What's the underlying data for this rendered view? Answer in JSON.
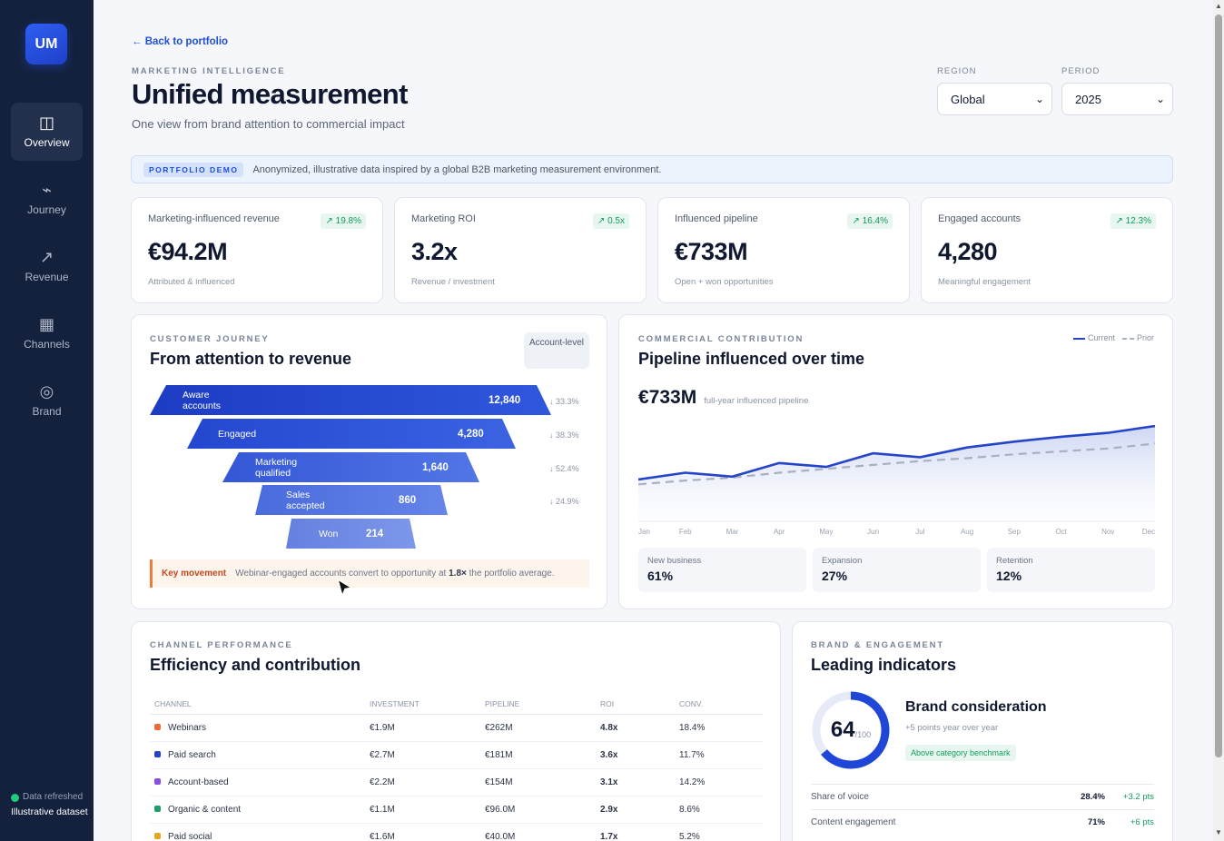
{
  "sidebar": {
    "logo": "UM",
    "items": [
      {
        "label": "Overview",
        "icon": "◫",
        "icon_name": "layout-icon"
      },
      {
        "label": "Journey",
        "icon": "⌁",
        "icon_name": "journey-icon"
      },
      {
        "label": "Revenue",
        "icon": "↗",
        "icon_name": "trend-icon"
      },
      {
        "label": "Channels",
        "icon": "▦",
        "icon_name": "grid-icon"
      },
      {
        "label": "Brand",
        "icon": "◎",
        "icon_name": "target-icon"
      }
    ],
    "status": "Data refreshed",
    "dataset": "Illustrative dataset"
  },
  "header": {
    "back": "← Back to portfolio",
    "eyebrow": "MARKETING INTELLIGENCE",
    "title": "Unified measurement",
    "subtitle": "One view from brand attention to commercial impact"
  },
  "filters": {
    "region_label": "REGION",
    "region_value": "Global",
    "period_label": "PERIOD",
    "period_value": "2025"
  },
  "notice": {
    "tag": "PORTFOLIO DEMO",
    "text": "Anonymized, illustrative data inspired by a global B2B marketing measurement environment."
  },
  "kpis": [
    {
      "label": "Marketing-influenced revenue",
      "delta": "↗ 19.8%",
      "value": "€94.2M",
      "foot": "Attributed & influenced"
    },
    {
      "label": "Marketing ROI",
      "delta": "↗ 0.5x",
      "value": "3.2x",
      "foot": "Revenue / investment"
    },
    {
      "label": "Influenced pipeline",
      "delta": "↗ 16.4%",
      "value": "€733M",
      "foot": "Open + won opportunities"
    },
    {
      "label": "Engaged accounts",
      "delta": "↗ 12.3%",
      "value": "4,280",
      "foot": "Meaningful engagement"
    }
  ],
  "journey": {
    "eyebrow": "CUSTOMER JOURNEY",
    "title": "From attention to revenue",
    "badge": "Account-level",
    "stages": [
      {
        "label": "Aware accounts",
        "value": "12,840",
        "conv": "↓ 33.3%"
      },
      {
        "label": "Engaged",
        "value": "4,280",
        "conv": "↓ 38.3%"
      },
      {
        "label": "Marketing qualified",
        "value": "1,640",
        "conv": "↓ 52.4%"
      },
      {
        "label": "Sales accepted",
        "value": "860",
        "conv": "↓ 24.9%"
      },
      {
        "label": "Won",
        "value": "214",
        "conv": ""
      }
    ],
    "key_label": "Key movement",
    "key_text_a": "Webinar-engaged accounts convert to opportunity at ",
    "key_text_b": "1.8×",
    "key_text_c": " the portfolio average."
  },
  "pipeline": {
    "eyebrow": "COMMERCIAL CONTRIBUTION",
    "title": "Pipeline influenced over time",
    "legend_current": "Current",
    "legend_prior": "Prior",
    "big": "€733M",
    "big_sub": "full-year influenced pipeline",
    "mix": [
      {
        "label": "New business",
        "value": "61%"
      },
      {
        "label": "Expansion",
        "value": "27%"
      },
      {
        "label": "Retention",
        "value": "12%"
      }
    ]
  },
  "chart_data": {
    "type": "line",
    "x": [
      "Jan",
      "Feb",
      "Mar",
      "Apr",
      "May",
      "Jun",
      "Jul",
      "Aug",
      "Sep",
      "Oct",
      "Nov",
      "Dec"
    ],
    "series": [
      {
        "name": "Current",
        "values": [
          43,
          50,
          46,
          60,
          56,
          70,
          66,
          76,
          82,
          87,
          91,
          98
        ]
      },
      {
        "name": "Prior",
        "values": [
          38,
          42,
          45,
          50,
          54,
          58,
          62,
          65,
          69,
          72,
          75,
          80
        ]
      }
    ],
    "ylim": [
      0,
      100
    ],
    "grid": false,
    "legend": "top-right",
    "colors": {
      "current": "#2544c9",
      "prior": "#a9b1c0"
    }
  },
  "channels": {
    "eyebrow": "CHANNEL PERFORMANCE",
    "title": "Efficiency and contribution",
    "columns": [
      "CHANNEL",
      "INVESTMENT",
      "PIPELINE",
      "ROI",
      "CONV."
    ],
    "rows": [
      {
        "name": "Webinars",
        "color": "#f06a35",
        "investment": "€1.9M",
        "pipeline": "€262M",
        "roi": "4.8x",
        "conv": "18.4%"
      },
      {
        "name": "Paid search",
        "color": "#2544c9",
        "investment": "€2.7M",
        "pipeline": "€181M",
        "roi": "3.6x",
        "conv": "11.7%"
      },
      {
        "name": "Account-based",
        "color": "#8a4fe0",
        "investment": "€2.2M",
        "pipeline": "€154M",
        "roi": "3.1x",
        "conv": "14.2%"
      },
      {
        "name": "Organic & content",
        "color": "#1f9e6a",
        "investment": "€1.1M",
        "pipeline": "€96.0M",
        "roi": "2.9x",
        "conv": "8.6%"
      },
      {
        "name": "Paid social",
        "color": "#e6a81a",
        "investment": "€1.6M",
        "pipeline": "€40.0M",
        "roi": "1.7x",
        "conv": "5.2%"
      }
    ]
  },
  "brand": {
    "eyebrow": "BRAND & ENGAGEMENT",
    "title": "Leading indicators",
    "score": "64",
    "score_max": "/100",
    "score_fraction": 0.64,
    "consideration_title": "Brand consideration",
    "consideration_sub": "+5 points year over year",
    "benchmark": "Above category benchmark",
    "indicators": [
      {
        "label": "Share of voice",
        "value": "28.4%",
        "delta": "+3.2 pts"
      },
      {
        "label": "Content engagement",
        "value": "71%",
        "delta": "+6 pts"
      }
    ]
  }
}
